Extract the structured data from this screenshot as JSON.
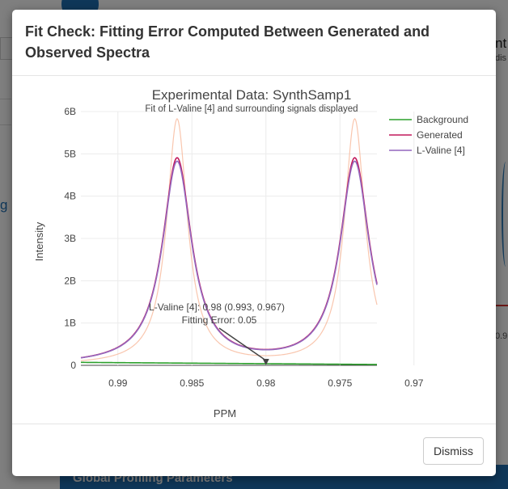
{
  "background": {
    "link_text": "g",
    "right_text_1": "nt",
    "right_text_2": "dis",
    "right_tick": "0.9",
    "bottom_bar_text": "Global Profiling Parameters"
  },
  "modal": {
    "title": "Fit Check: Fitting Error Computed Between Generated and Observed Spectra",
    "dismiss_label": "Dismiss"
  },
  "colors": {
    "background_series": "#2ca02c",
    "generated_series": "#c2185b",
    "lvaline_series": "#9467bd",
    "observed_series": "#f7b89a"
  },
  "chart_data": {
    "type": "line",
    "title": "Experimental Data: SynthSamp1",
    "subtitle": "Fit of L-Valine [4]  and surrounding signals displayed",
    "xlabel": "PPM",
    "ylabel": "Intensity",
    "x_reversed": true,
    "xlim": [
      0.9925,
      0.9725
    ],
    "ylim": [
      0,
      6000000000
    ],
    "x_ticks": [
      0.99,
      0.985,
      0.98,
      0.975,
      0.97
    ],
    "x_tick_labels": [
      "0.99",
      "0.985",
      "0.98",
      "0.975",
      "0.97"
    ],
    "y_ticks": [
      0,
      1000000000,
      2000000000,
      3000000000,
      4000000000,
      5000000000,
      6000000000
    ],
    "y_tick_labels": [
      "0",
      "1B",
      "2B",
      "3B",
      "4B",
      "5B",
      "6B"
    ],
    "grid": true,
    "legend_position": "top-right",
    "legend": [
      "Background",
      "Generated",
      "L-Valine [4]"
    ],
    "peaks_ppm": [
      0.986,
      0.974
    ],
    "series": [
      {
        "name": "Background",
        "peak_height": 0,
        "baseline_start": 70000000,
        "baseline_end": 20000000,
        "color": "#2ca02c"
      },
      {
        "name": "Generated",
        "peak_height": 4860000000,
        "half_width": 0.0012,
        "color": "#c2185b"
      },
      {
        "name": "L-Valine [4]",
        "peak_height": 4780000000,
        "half_width": 0.0012,
        "color": "#9467bd"
      },
      {
        "peak_height": 5800000000,
        "half_width": 0.00085,
        "color": "#f7b89a"
      }
    ],
    "annotation": {
      "line1": "L-Valine [4]: 0.98 (0.993, 0.967)",
      "line2": "Fitting Error: 0.05",
      "x": 0.98,
      "y": 0
    }
  }
}
